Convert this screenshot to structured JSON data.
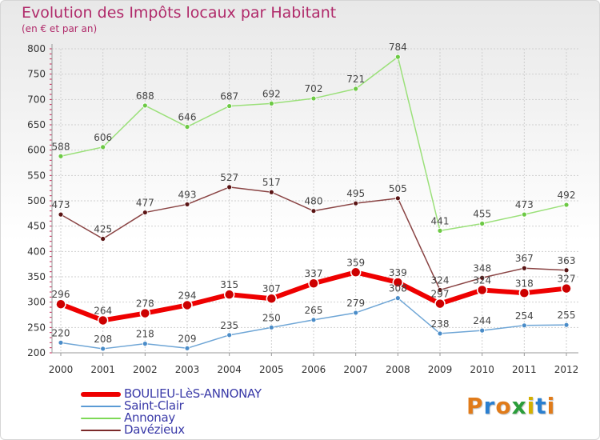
{
  "chart_data": {
    "type": "line",
    "title": "Evolution des Impôts locaux par Habitant",
    "subtitle": "(en € et par an)",
    "categories": [
      "2000",
      "2001",
      "2002",
      "2003",
      "2004",
      "2005",
      "2006",
      "2007",
      "2008",
      "2009",
      "2010",
      "2011",
      "2012"
    ],
    "ylim": [
      200,
      800
    ],
    "yticks": [
      200,
      250,
      300,
      350,
      400,
      450,
      500,
      550,
      600,
      650,
      700,
      750,
      800
    ],
    "grid": true,
    "legend_position": "bottom-left",
    "series": [
      {
        "name": "BOULIEU-LèS-ANNONAY",
        "color": "#ee0000",
        "values": [
          296,
          264,
          278,
          294,
          315,
          307,
          337,
          359,
          339,
          297,
          324,
          318,
          327
        ],
        "value_labels": [
          "296",
          "264",
          "278",
          "294",
          "315",
          "307",
          "337",
          "359",
          "339",
          "297",
          "324",
          "318",
          "327"
        ]
      },
      {
        "name": "Saint-Clair",
        "color": "#5b9bd5",
        "values": [
          220,
          208,
          218,
          209,
          235,
          250,
          265,
          279,
          308,
          238,
          244,
          254,
          255
        ],
        "value_labels": [
          "220",
          "208",
          "218",
          "209",
          "235",
          "250",
          "265",
          "279",
          "308",
          "238",
          "244",
          "254",
          "255"
        ]
      },
      {
        "name": "Annonay",
        "color": "#7ed957",
        "values": [
          588,
          606,
          688,
          646,
          687,
          692,
          702,
          721,
          784,
          441,
          455,
          473,
          492
        ],
        "value_labels": [
          "588",
          "606",
          "688",
          "646",
          "687",
          "692",
          "702",
          "721",
          "784",
          "441",
          "455",
          "473",
          "492"
        ]
      },
      {
        "name": "Davézieux",
        "color": "#7b2a2a",
        "values": [
          473,
          425,
          477,
          493,
          527,
          517,
          480,
          495,
          505,
          324,
          348,
          367,
          363
        ],
        "value_labels": [
          "473",
          "425",
          "477",
          "493",
          "527",
          "517",
          "480",
          "495",
          "505",
          "324",
          "348",
          "367",
          "363"
        ]
      }
    ]
  },
  "legend": {
    "items": [
      {
        "label": "BOULIEU-LèS-ANNONAY",
        "color": "#ee0000"
      },
      {
        "label": "Saint-Clair",
        "color": "#5b9bd5"
      },
      {
        "label": "Annonay",
        "color": "#7ed957"
      },
      {
        "label": "Davézieux",
        "color": "#7b2a2a"
      }
    ]
  },
  "logo": {
    "text": "Proxiti",
    "colors": [
      "#e07b1a",
      "#2a7fd0",
      "#e07b1a",
      "#2a9d3a",
      "#d4b000",
      "#2a7fd0",
      "#e07b1a"
    ]
  }
}
